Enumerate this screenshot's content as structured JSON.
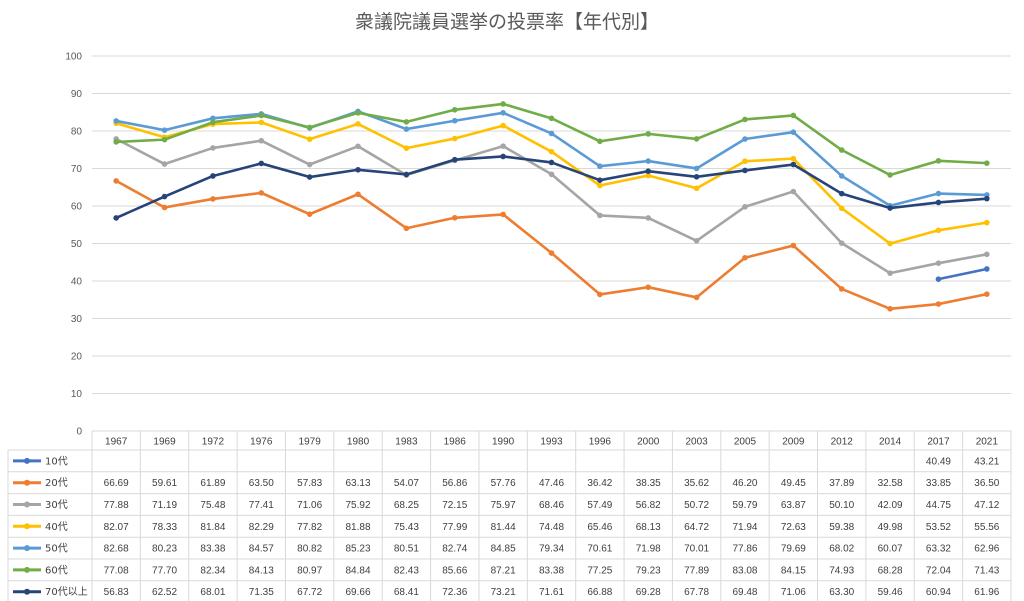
{
  "chart_data": {
    "type": "line",
    "title": "衆議院議員選挙の投票率【年代別】",
    "xlabel": "",
    "ylabel": "",
    "ylim": [
      0,
      100
    ],
    "yticks": [
      "0",
      "10",
      "20",
      "30",
      "40",
      "50",
      "60",
      "70",
      "80",
      "90",
      "100"
    ],
    "grid": true,
    "legend_position": "table-bottom",
    "categories": [
      "1967",
      "1969",
      "1972",
      "1976",
      "1979",
      "1980",
      "1983",
      "1986",
      "1990",
      "1993",
      "1996",
      "2000",
      "2003",
      "2005",
      "2009",
      "2012",
      "2014",
      "2017",
      "2021"
    ],
    "series": [
      {
        "name": "10代",
        "color": "#4472c4",
        "values": [
          null,
          null,
          null,
          null,
          null,
          null,
          null,
          null,
          null,
          null,
          null,
          null,
          null,
          null,
          null,
          null,
          null,
          40.49,
          43.21
        ],
        "labels": [
          "",
          "",
          "",
          "",
          "",
          "",
          "",
          "",
          "",
          "",
          "",
          "",
          "",
          "",
          "",
          "",
          "",
          "40.49",
          "43.21"
        ]
      },
      {
        "name": "20代",
        "color": "#ed7d31",
        "values": [
          66.69,
          59.61,
          61.89,
          63.5,
          57.83,
          63.13,
          54.07,
          56.86,
          57.76,
          47.46,
          36.42,
          38.35,
          35.62,
          46.2,
          49.45,
          37.89,
          32.58,
          33.85,
          36.5
        ],
        "labels": [
          "66.69",
          "59.61",
          "61.89",
          "63.50",
          "57.83",
          "63.13",
          "54.07",
          "56.86",
          "57.76",
          "47.46",
          "36.42",
          "38.35",
          "35.62",
          "46.20",
          "49.45",
          "37.89",
          "32.58",
          "33.85",
          "36.50"
        ]
      },
      {
        "name": "30代",
        "color": "#a5a5a5",
        "values": [
          77.88,
          71.19,
          75.48,
          77.41,
          71.06,
          75.92,
          68.25,
          72.15,
          75.97,
          68.46,
          57.49,
          56.82,
          50.72,
          59.79,
          63.87,
          50.1,
          42.09,
          44.75,
          47.12
        ],
        "labels": [
          "77.88",
          "71.19",
          "75.48",
          "77.41",
          "71.06",
          "75.92",
          "68.25",
          "72.15",
          "75.97",
          "68.46",
          "57.49",
          "56.82",
          "50.72",
          "59.79",
          "63.87",
          "50.10",
          "42.09",
          "44.75",
          "47.12"
        ]
      },
      {
        "name": "40代",
        "color": "#ffc000",
        "values": [
          82.07,
          78.33,
          81.84,
          82.29,
          77.82,
          81.88,
          75.43,
          77.99,
          81.44,
          74.48,
          65.46,
          68.13,
          64.72,
          71.94,
          72.63,
          59.38,
          49.98,
          53.52,
          55.56
        ],
        "labels": [
          "82.07",
          "78.33",
          "81.84",
          "82.29",
          "77.82",
          "81.88",
          "75.43",
          "77.99",
          "81.44",
          "74.48",
          "65.46",
          "68.13",
          "64.72",
          "71.94",
          "72.63",
          "59.38",
          "49.98",
          "53.52",
          "55.56"
        ]
      },
      {
        "name": "50代",
        "color": "#5b9bd5",
        "values": [
          82.68,
          80.23,
          83.38,
          84.57,
          80.82,
          85.23,
          80.51,
          82.74,
          84.85,
          79.34,
          70.61,
          71.98,
          70.01,
          77.86,
          79.69,
          68.02,
          60.07,
          63.32,
          62.96
        ],
        "labels": [
          "82.68",
          "80.23",
          "83.38",
          "84.57",
          "80.82",
          "85.23",
          "80.51",
          "82.74",
          "84.85",
          "79.34",
          "70.61",
          "71.98",
          "70.01",
          "77.86",
          "79.69",
          "68.02",
          "60.07",
          "63.32",
          "62.96"
        ]
      },
      {
        "name": "60代",
        "color": "#70ad47",
        "values": [
          77.08,
          77.7,
          82.34,
          84.13,
          80.97,
          84.84,
          82.43,
          85.66,
          87.21,
          83.38,
          77.25,
          79.23,
          77.89,
          83.08,
          84.15,
          74.93,
          68.28,
          72.04,
          71.43
        ],
        "labels": [
          "77.08",
          "77.70",
          "82.34",
          "84.13",
          "80.97",
          "84.84",
          "82.43",
          "85.66",
          "87.21",
          "83.38",
          "77.25",
          "79.23",
          "77.89",
          "83.08",
          "84.15",
          "74.93",
          "68.28",
          "72.04",
          "71.43"
        ]
      },
      {
        "name": "70代以上",
        "color": "#264478",
        "values": [
          56.83,
          62.52,
          68.01,
          71.35,
          67.72,
          69.66,
          68.41,
          72.36,
          73.21,
          71.61,
          66.88,
          69.28,
          67.78,
          69.48,
          71.06,
          63.3,
          59.46,
          60.94,
          61.96
        ],
        "labels": [
          "56.83",
          "62.52",
          "68.01",
          "71.35",
          "67.72",
          "69.66",
          "68.41",
          "72.36",
          "73.21",
          "71.61",
          "66.88",
          "69.28",
          "67.78",
          "69.48",
          "71.06",
          "63.30",
          "59.46",
          "60.94",
          "61.96"
        ]
      }
    ]
  }
}
